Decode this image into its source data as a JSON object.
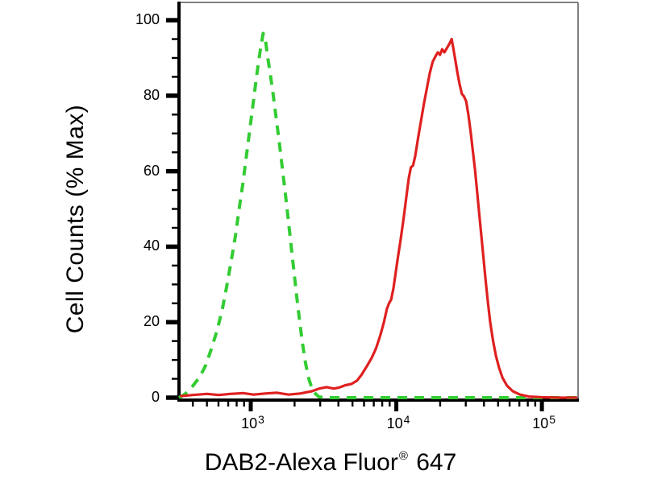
{
  "figure": {
    "xlabel_main": "DAB2-Alexa Fluor",
    "xlabel_registered": "®",
    "xlabel_suffix": " 647",
    "background_color": "#ffffff"
  },
  "chart_data": {
    "type": "line",
    "subtype": "flow-cytometry-histogram-overlay",
    "title": "",
    "xlabel": "DAB2-Alexa Fluor® 647",
    "ylabel": "Cell Counts (% Max)",
    "xscale": "log10",
    "xlim_log10": [
      2.507,
      5.243
    ],
    "ylim": [
      0,
      104.5
    ],
    "y_major_ticks": [
      0,
      20,
      40,
      60,
      80,
      100
    ],
    "y_minor_tick_step": 5,
    "x_major_ticks": [
      {
        "label_base": "10",
        "label_exp": "3",
        "log10": 3
      },
      {
        "label_base": "10",
        "label_exp": "4",
        "log10": 4
      },
      {
        "label_base": "10",
        "label_exp": "5",
        "log10": 5
      }
    ],
    "grid": false,
    "legend": "none",
    "axis_color": "#000000",
    "frame_color": "#808080",
    "series": [
      {
        "name": "green-dashed-curve",
        "color": "#33CC33",
        "line_style": "dashed",
        "stroke_width": 4,
        "approx_peak": {
          "x": 1200,
          "y_pct": 96.5
        },
        "points_log10x_ypct": [
          [
            2.507,
            0
          ],
          [
            2.55,
            1
          ],
          [
            2.6,
            3
          ],
          [
            2.65,
            5.5
          ],
          [
            2.69,
            8.5
          ],
          [
            2.73,
            13
          ],
          [
            2.77,
            18
          ],
          [
            2.805,
            23.5
          ],
          [
            2.835,
            29.5
          ],
          [
            2.865,
            36
          ],
          [
            2.895,
            43
          ],
          [
            2.92,
            50
          ],
          [
            2.945,
            56.5
          ],
          [
            2.965,
            62.5
          ],
          [
            2.985,
            68.5
          ],
          [
            3.005,
            74.5
          ],
          [
            3.025,
            80.5
          ],
          [
            3.045,
            86.5
          ],
          [
            3.065,
            92
          ],
          [
            3.085,
            96.5
          ],
          [
            3.1,
            95
          ],
          [
            3.115,
            90.5
          ],
          [
            3.135,
            85.5
          ],
          [
            3.155,
            80
          ],
          [
            3.175,
            74
          ],
          [
            3.195,
            68
          ],
          [
            3.215,
            61.5
          ],
          [
            3.235,
            55
          ],
          [
            3.255,
            48
          ],
          [
            3.275,
            41
          ],
          [
            3.295,
            34
          ],
          [
            3.315,
            27
          ],
          [
            3.335,
            20.5
          ],
          [
            3.355,
            14.5
          ],
          [
            3.375,
            9.5
          ],
          [
            3.395,
            5.5
          ],
          [
            3.42,
            2.5
          ],
          [
            3.445,
            1
          ],
          [
            3.47,
            0.2
          ],
          [
            3.52,
            0
          ],
          [
            5.243,
            0
          ]
        ]
      },
      {
        "name": "red-solid-curve",
        "color": "#DF2020",
        "line_style": "solid",
        "stroke_width": 3.2,
        "approx_peak": {
          "x": 23500,
          "y_pct": 95
        },
        "points_log10x_ypct": [
          [
            2.515,
            0.4
          ],
          [
            2.6,
            0.7
          ],
          [
            2.7,
            1.0
          ],
          [
            2.78,
            0.7
          ],
          [
            2.86,
            1.0
          ],
          [
            2.95,
            1.2
          ],
          [
            3.02,
            0.8
          ],
          [
            3.1,
            1.1
          ],
          [
            3.18,
            1.3
          ],
          [
            3.26,
            0.8
          ],
          [
            3.34,
            1.1
          ],
          [
            3.42,
            1.7
          ],
          [
            3.47,
            2.4
          ],
          [
            3.52,
            2.8
          ],
          [
            3.57,
            2.4
          ],
          [
            3.61,
            2.7
          ],
          [
            3.65,
            3.3
          ],
          [
            3.69,
            3.6
          ],
          [
            3.73,
            4.5
          ],
          [
            3.76,
            6
          ],
          [
            3.8,
            8.5
          ],
          [
            3.83,
            10.5
          ],
          [
            3.86,
            13
          ],
          [
            3.89,
            16.5
          ],
          [
            3.915,
            20
          ],
          [
            3.935,
            23.5
          ],
          [
            3.95,
            25
          ],
          [
            3.965,
            26
          ],
          [
            3.98,
            29
          ],
          [
            3.995,
            33
          ],
          [
            4.01,
            37
          ],
          [
            4.03,
            42
          ],
          [
            4.05,
            47.5
          ],
          [
            4.07,
            53.5
          ],
          [
            4.085,
            58
          ],
          [
            4.1,
            61
          ],
          [
            4.115,
            61.5
          ],
          [
            4.13,
            64
          ],
          [
            4.15,
            69
          ],
          [
            4.17,
            73.5
          ],
          [
            4.19,
            78
          ],
          [
            4.21,
            82
          ],
          [
            4.23,
            86
          ],
          [
            4.25,
            89
          ],
          [
            4.27,
            90.5
          ],
          [
            4.285,
            91.5
          ],
          [
            4.3,
            90.8
          ],
          [
            4.315,
            92.3
          ],
          [
            4.33,
            91.5
          ],
          [
            4.35,
            92.8
          ],
          [
            4.365,
            93.8
          ],
          [
            4.38,
            95
          ],
          [
            4.392,
            92.5
          ],
          [
            4.405,
            89.5
          ],
          [
            4.42,
            86
          ],
          [
            4.435,
            83
          ],
          [
            4.45,
            80.5
          ],
          [
            4.465,
            79.8
          ],
          [
            4.48,
            78.5
          ],
          [
            4.495,
            75
          ],
          [
            4.51,
            70.5
          ],
          [
            4.525,
            65.5
          ],
          [
            4.54,
            60.5
          ],
          [
            4.555,
            54.5
          ],
          [
            4.57,
            48.5
          ],
          [
            4.585,
            42.5
          ],
          [
            4.6,
            36.5
          ],
          [
            4.615,
            30.5
          ],
          [
            4.63,
            25
          ],
          [
            4.645,
            20
          ],
          [
            4.665,
            15
          ],
          [
            4.685,
            11
          ],
          [
            4.705,
            8
          ],
          [
            4.73,
            5.2
          ],
          [
            4.76,
            3.2
          ],
          [
            4.8,
            1.7
          ],
          [
            4.85,
            0.8
          ],
          [
            4.91,
            0.3
          ],
          [
            5.0,
            0.1
          ],
          [
            5.12,
            0
          ],
          [
            5.243,
            0
          ]
        ]
      }
    ]
  }
}
